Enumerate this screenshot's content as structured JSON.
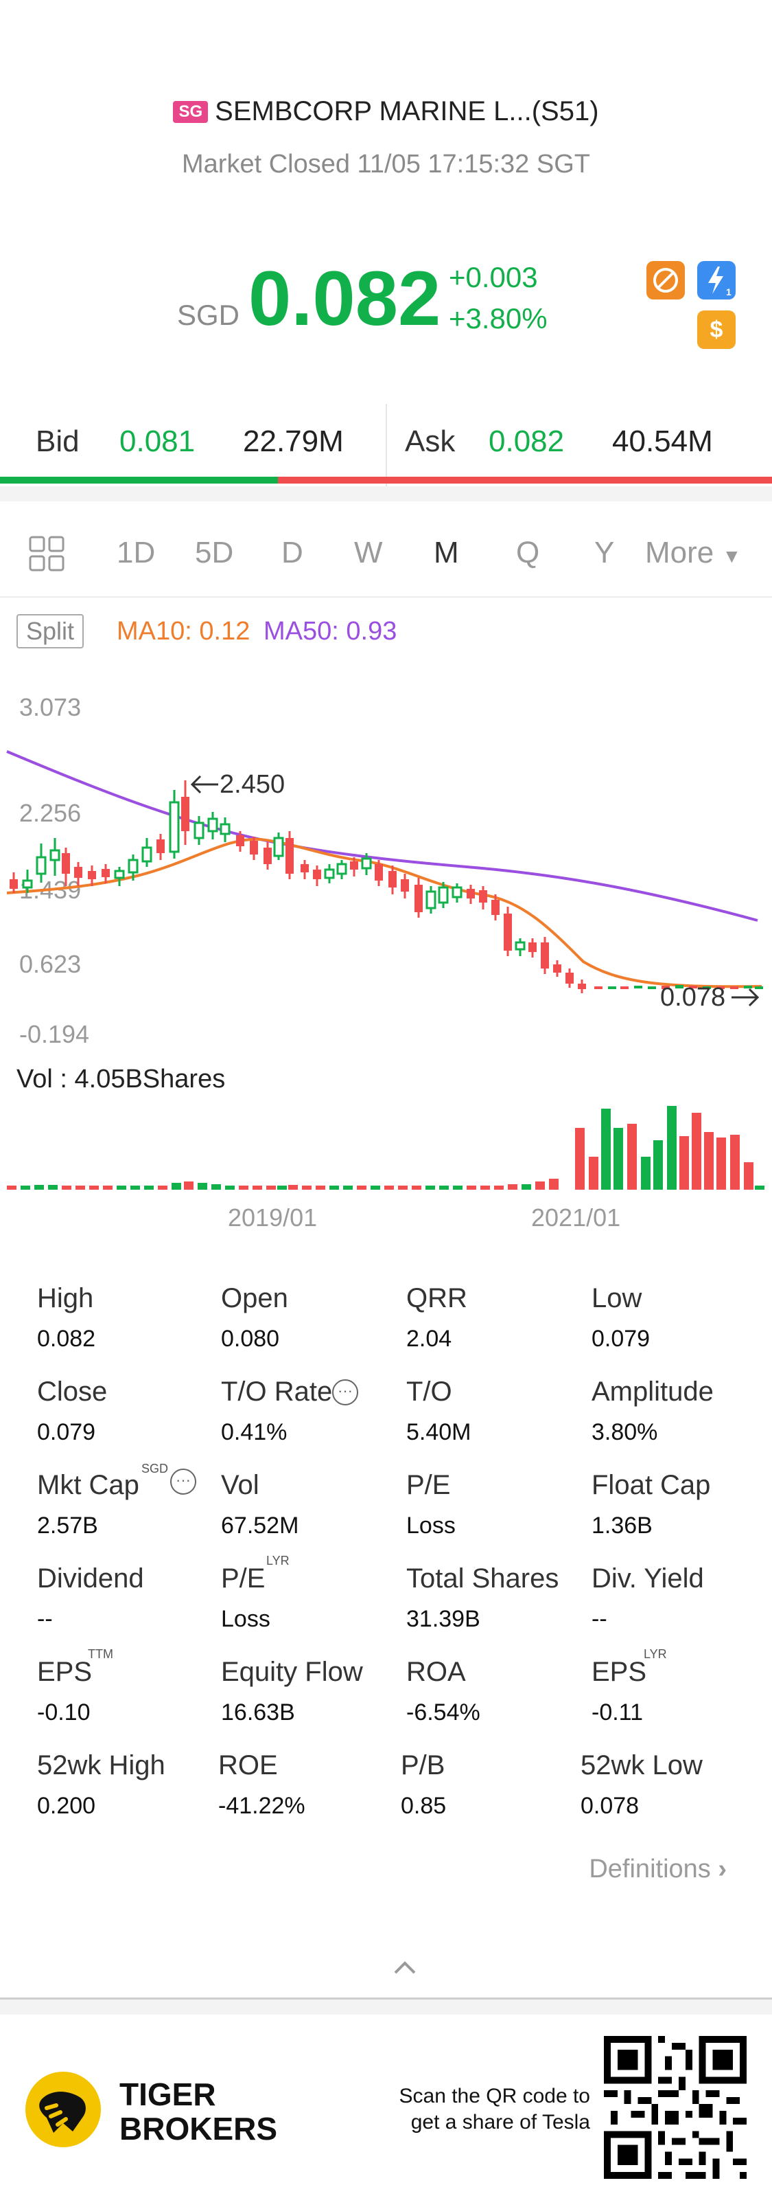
{
  "header": {
    "exchange_badge": "SG",
    "title": "SEMBCORP MARINE L...(S51)",
    "market_status": "Market Closed 11/05 17:15:32 SGT"
  },
  "quote": {
    "currency": "SGD",
    "price": "0.082",
    "change_abs": "+0.003",
    "change_pct": "+3.80%",
    "colors": {
      "up": "#12b04b",
      "down": "#f04e4e"
    },
    "badges": [
      "no-short-icon",
      "lightning-1-icon",
      "dollar-icon"
    ]
  },
  "bidask": {
    "bid_label": "Bid",
    "bid_price": "0.081",
    "bid_size": "22.79M",
    "ask_label": "Ask",
    "ask_price": "0.082",
    "ask_size": "40.54M",
    "bid_ratio": 0.36
  },
  "tabs": {
    "items": [
      "1D",
      "5D",
      "D",
      "W",
      "M",
      "Q",
      "Y"
    ],
    "active": "M",
    "more": "More"
  },
  "indicators": {
    "split": "Split",
    "ma10": "MA10: 0.12",
    "ma50": "MA50: 0.93",
    "colors": {
      "ma10": "#ef7d2b",
      "ma50": "#9b4fe0"
    }
  },
  "chart_data": {
    "type": "candlestick",
    "y_ticks": [
      "3.073",
      "2.256",
      "1.439",
      "0.623",
      "-0.194"
    ],
    "ylim": [
      -0.194,
      3.073
    ],
    "high_marker": "2.450",
    "low_marker": "0.078",
    "x_ticks": [
      "2019/01",
      "2021/01"
    ],
    "volume_label": "Vol  : 4.05BShares"
  },
  "stats": {
    "rows": [
      [
        {
          "label": "High",
          "value": "0.082"
        },
        {
          "label": "Open",
          "value": "0.080"
        },
        {
          "label": "QRR",
          "value": "2.04"
        },
        {
          "label": "Low",
          "value": "0.079"
        }
      ],
      [
        {
          "label": "Close",
          "value": "0.079"
        },
        {
          "label": "T/O Rate",
          "value": "0.41%"
        },
        {
          "label": "T/O",
          "value": "5.40M"
        },
        {
          "label": "Amplitude",
          "value": "3.80%"
        }
      ],
      [
        {
          "label": "Mkt Cap",
          "value": "2.57B"
        },
        {
          "label": "Vol",
          "value": "67.52M"
        },
        {
          "label": "P/E",
          "value": "Loss"
        },
        {
          "label": "Float Cap",
          "value": "1.36B"
        }
      ],
      [
        {
          "label": "Dividend",
          "value": "--"
        },
        {
          "label": "P/E",
          "value": "Loss"
        },
        {
          "label": "Total Shares",
          "value": "31.39B"
        },
        {
          "label": "Div. Yield",
          "value": "--"
        }
      ],
      [
        {
          "label": "EPS",
          "value": "-0.10"
        },
        {
          "label": "Equity Flow",
          "value": "16.63B"
        },
        {
          "label": "ROA",
          "value": "-6.54%"
        },
        {
          "label": "EPS",
          "value": "-0.11"
        }
      ],
      [
        {
          "label": "52wk High",
          "value": "0.200"
        },
        {
          "label": "ROE",
          "value": "-41.22%"
        },
        {
          "label": "P/B",
          "value": "0.85"
        },
        {
          "label": "52wk Low",
          "value": "0.078"
        }
      ]
    ],
    "superscripts": {
      "mktcap": "SGD",
      "pe_lyr": "LYR",
      "eps_ttm": "TTM",
      "eps_lyr": "LYR"
    }
  },
  "definitions": "Definitions",
  "footer": {
    "brand_line1": "TIGER",
    "brand_line2": "BROKERS",
    "qr_line1": "Scan the QR code to",
    "qr_line2": "get a share of Tesla"
  }
}
